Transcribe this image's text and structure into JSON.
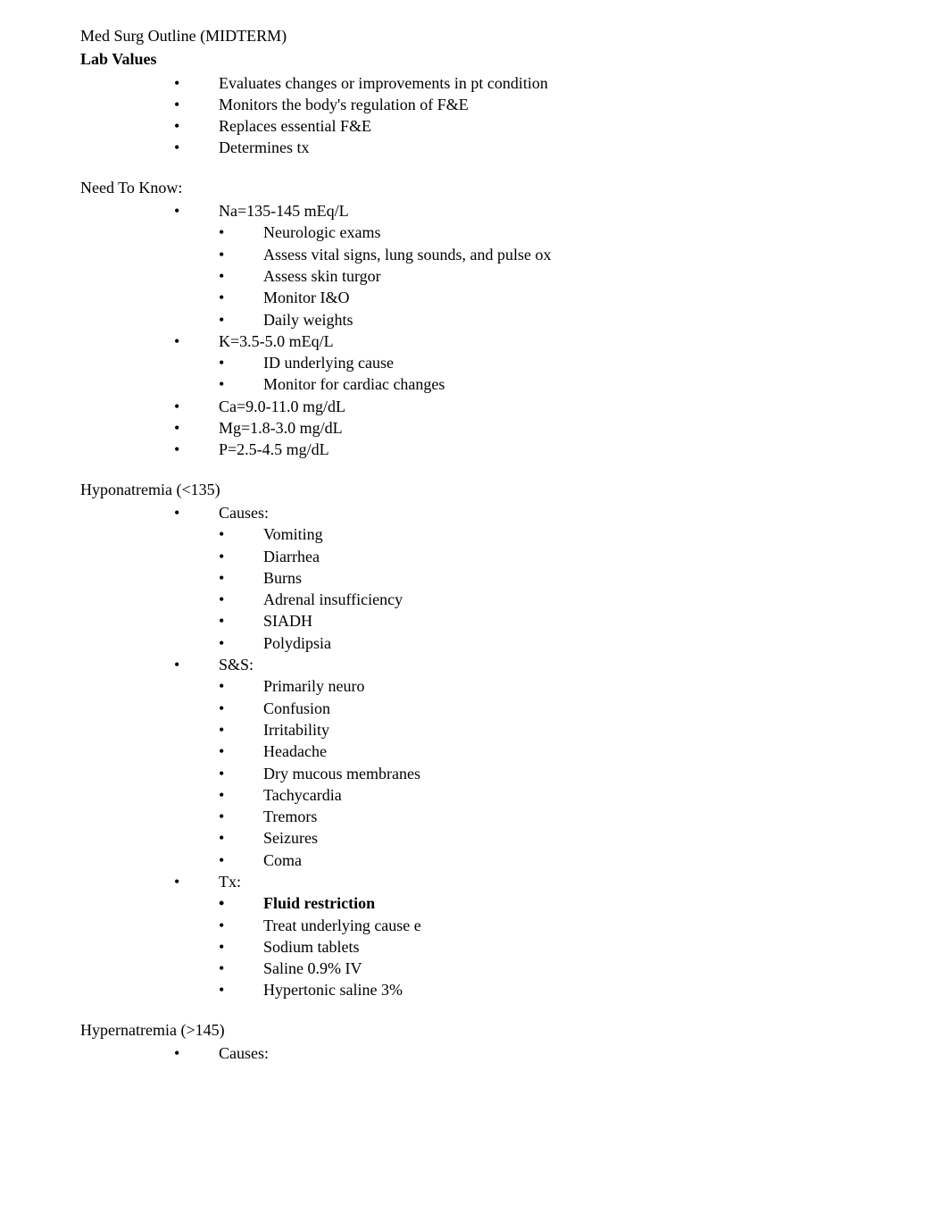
{
  "title_line": "Med Surg Outline (MIDTERM)",
  "section_lab_values": {
    "heading": "Lab Values",
    "items": [
      "Evaluates changes or improvements in pt condition",
      "Monitors the body's regulation of F&E",
      "Replaces essential F&E",
      "Determines tx"
    ]
  },
  "section_need_to_know": {
    "heading": "Need To Know:",
    "items": [
      {
        "label": "Na=135-145 mEq/L",
        "sub": [
          "Neurologic exams",
          "Assess vital signs, lung sounds, and pulse ox",
          "Assess skin turgor",
          "Monitor I&O",
          "Daily weights"
        ]
      },
      {
        "label": "K=3.5-5.0 mEq/L",
        "sub": [
          "ID underlying cause",
          "Monitor for cardiac changes"
        ]
      },
      {
        "label": "Ca=9.0-11.0 mg/dL",
        "sub": []
      },
      {
        "label": "Mg=1.8-3.0 mg/dL",
        "sub": []
      },
      {
        "label": "P=2.5-4.5 mg/dL",
        "sub": []
      }
    ]
  },
  "section_hyponatremia": {
    "heading": "Hyponatremia (<135)",
    "items": [
      {
        "label": "Causes:",
        "sub": [
          {
            "text": "Vomiting",
            "bold": false
          },
          {
            "text": "Diarrhea",
            "bold": false
          },
          {
            "text": "Burns",
            "bold": false
          },
          {
            "text": "Adrenal insufficiency",
            "bold": false
          },
          {
            "text": "SIADH",
            "bold": false
          },
          {
            "text": "Polydipsia",
            "bold": false
          }
        ]
      },
      {
        "label": "S&S:",
        "sub": [
          {
            "text": "Primarily neuro",
            "bold": false
          },
          {
            "text": "Confusion",
            "bold": false
          },
          {
            "text": "Irritability",
            "bold": false
          },
          {
            "text": "Headache",
            "bold": false
          },
          {
            "text": "Dry mucous membranes",
            "bold": false
          },
          {
            "text": "Tachycardia",
            "bold": false
          },
          {
            "text": "Tremors",
            "bold": false
          },
          {
            "text": "Seizures",
            "bold": false
          },
          {
            "text": "Coma",
            "bold": false
          }
        ]
      },
      {
        "label": "Tx:",
        "sub": [
          {
            "text": "Fluid restriction",
            "bold": true
          },
          {
            "text": "Treat underlying cause e",
            "bold": false
          },
          {
            "text": "Sodium tablets",
            "bold": false
          },
          {
            "text": "Saline 0.9% IV",
            "bold": false
          },
          {
            "text": "Hypertonic saline 3%",
            "bold": false
          }
        ]
      }
    ]
  },
  "section_hypernatremia": {
    "heading": "Hypernatremia (>145)",
    "items": [
      {
        "label": "Causes:",
        "sub": []
      }
    ]
  },
  "bullet_char": "•",
  "colors": {
    "text": "#000000",
    "background": "#ffffff"
  },
  "typography": {
    "font_family": "Times New Roman",
    "font_size_pt": 13,
    "line_height": 1.35
  }
}
